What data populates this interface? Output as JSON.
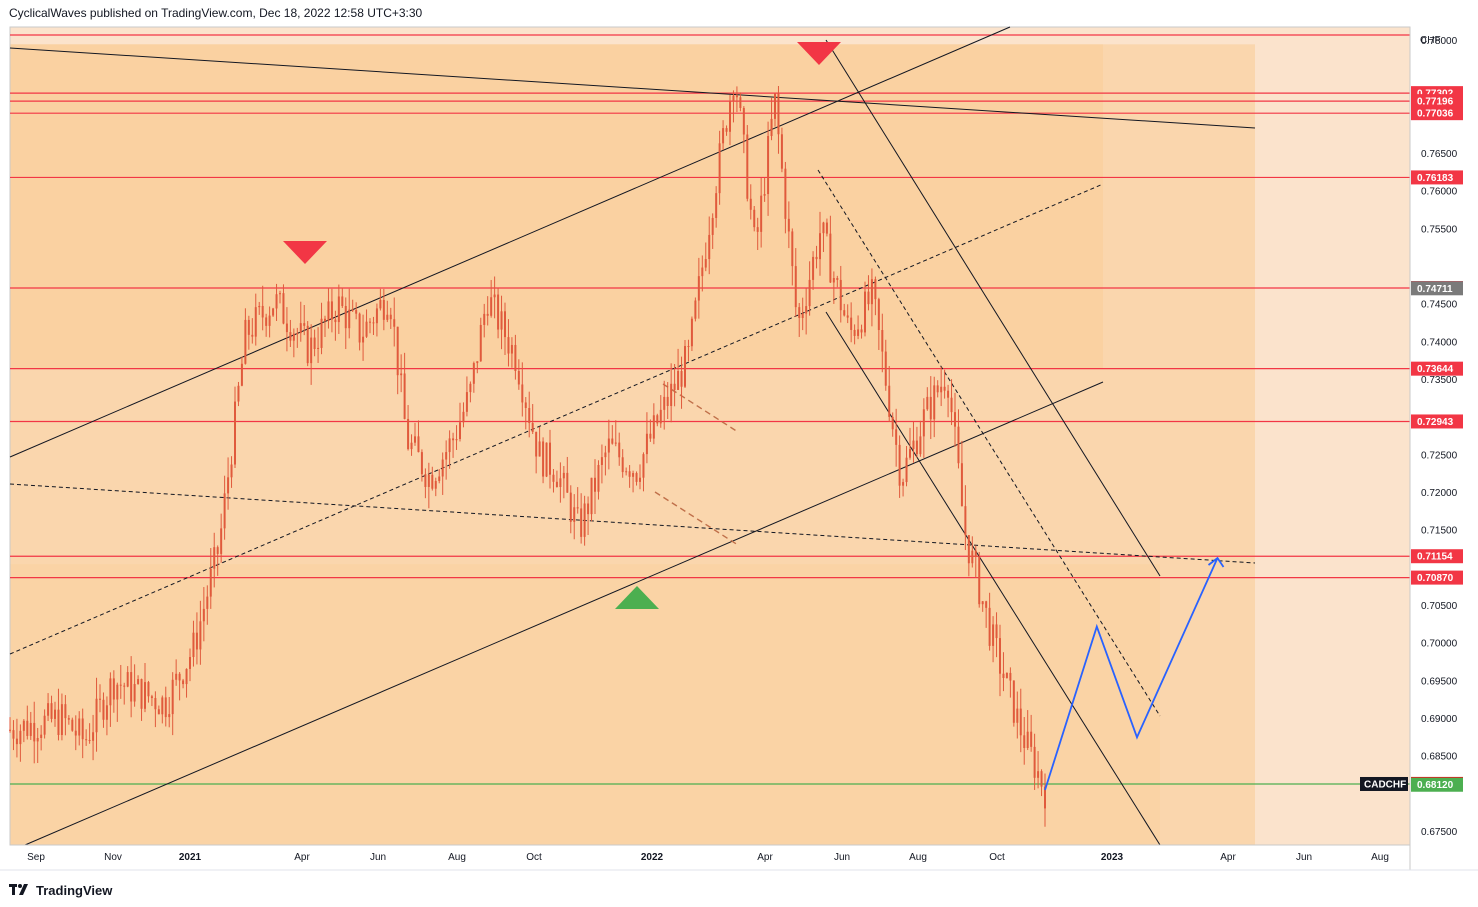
{
  "header": {
    "text": "CyclicalWaves published on TradingView.com, Dec 18, 2022 12:58 UTC+3:30"
  },
  "footer": {
    "brand": "TradingView",
    "logo_icon": "tradingview-logo-icon"
  },
  "colors": {
    "bar": "#e05a3c",
    "level_line": "#f23645",
    "support_line": "#4caf50",
    "projection": "#2962ff",
    "zone_light": "#fbe3cc",
    "zone_mid": "#fad6ad",
    "zone_dark": "#f9cd98",
    "marker_red": "#f23645",
    "marker_green": "#4caf50"
  },
  "chart_data": {
    "type": "candlestick",
    "symbol": "CADCHF",
    "currency": "CHF",
    "x_labels": [
      {
        "label": "Sep",
        "year": false
      },
      {
        "label": "Nov",
        "year": false
      },
      {
        "label": "2021",
        "year": true
      },
      {
        "label": "Apr",
        "year": false
      },
      {
        "label": "Jun",
        "year": false
      },
      {
        "label": "Aug",
        "year": false
      },
      {
        "label": "Oct",
        "year": false
      },
      {
        "label": "2022",
        "year": true
      },
      {
        "label": "Apr",
        "year": false
      },
      {
        "label": "Jun",
        "year": false
      },
      {
        "label": "Aug",
        "year": false
      },
      {
        "label": "Oct",
        "year": false
      },
      {
        "label": "2023",
        "year": true
      },
      {
        "label": "Apr",
        "year": false
      },
      {
        "label": "Jun",
        "year": false
      },
      {
        "label": "Aug",
        "year": false
      }
    ],
    "y_ticks": [
      0.78,
      0.765,
      0.76,
      0.755,
      0.745,
      0.74,
      0.735,
      0.725,
      0.72,
      0.715,
      0.705,
      0.7,
      0.695,
      0.69,
      0.685,
      0.675
    ],
    "y_tick_labels": [
      "0.78000",
      "0.76500",
      "0.76000",
      "0.75500",
      "0.74500",
      "0.74000",
      "0.73500",
      "0.72500",
      "0.72000",
      "0.71500",
      "0.70500",
      "0.70000",
      "0.69500",
      "0.69000",
      "0.68500",
      "0.67500"
    ],
    "ylim": [
      0.6732,
      0.7818
    ],
    "price_levels": [
      {
        "label": "0.77302",
        "value": 0.77302
      },
      {
        "label": "0.77196",
        "value": 0.77196
      },
      {
        "label": "0.77036",
        "value": 0.77036
      },
      {
        "label": "0.76183",
        "value": 0.76183
      },
      {
        "label": "0.74715",
        "value": 0.74715
      },
      {
        "label": "0.73644",
        "value": 0.73644
      },
      {
        "label": "0.72943",
        "value": 0.72943
      },
      {
        "label": "0.71154",
        "value": 0.71154
      },
      {
        "label": "0.70870",
        "value": 0.7087
      }
    ],
    "extra_label": {
      "label": "0.74711",
      "value": 0.74711
    },
    "support": {
      "value": 0.6813
    },
    "symbol_tag": "CADCHF",
    "current_bid": {
      "label": "0.68131",
      "value": 0.68131
    },
    "current_ask": {
      "label": "0.68120",
      "value": 0.6812
    },
    "waypoints": [
      {
        "t": 0.0,
        "p": 0.6885
      },
      {
        "t": 0.045,
        "p": 0.69
      },
      {
        "t": 0.065,
        "p": 0.687
      },
      {
        "t": 0.09,
        "p": 0.695
      },
      {
        "t": 0.135,
        "p": 0.692
      },
      {
        "t": 0.16,
        "p": 0.6995
      },
      {
        "t": 0.182,
        "p": 0.713
      },
      {
        "t": 0.205,
        "p": 0.741
      },
      {
        "t": 0.23,
        "p": 0.7455
      },
      {
        "t": 0.26,
        "p": 0.739
      },
      {
        "t": 0.285,
        "p": 0.745
      },
      {
        "t": 0.305,
        "p": 0.741
      },
      {
        "t": 0.33,
        "p": 0.7465
      },
      {
        "t": 0.345,
        "p": 0.727
      },
      {
        "t": 0.365,
        "p": 0.722
      },
      {
        "t": 0.385,
        "p": 0.727
      },
      {
        "t": 0.4,
        "p": 0.733
      },
      {
        "t": 0.415,
        "p": 0.746
      },
      {
        "t": 0.44,
        "p": 0.738
      },
      {
        "t": 0.46,
        "p": 0.725
      },
      {
        "t": 0.475,
        "p": 0.723
      },
      {
        "t": 0.495,
        "p": 0.715
      },
      {
        "t": 0.52,
        "p": 0.726
      },
      {
        "t": 0.545,
        "p": 0.723
      },
      {
        "t": 0.565,
        "p": 0.73
      },
      {
        "t": 0.59,
        "p": 0.738
      },
      {
        "t": 0.61,
        "p": 0.758
      },
      {
        "t": 0.63,
        "p": 0.776
      },
      {
        "t": 0.648,
        "p": 0.752
      },
      {
        "t": 0.665,
        "p": 0.772
      },
      {
        "t": 0.685,
        "p": 0.742
      },
      {
        "t": 0.705,
        "p": 0.755
      },
      {
        "t": 0.73,
        "p": 0.741
      },
      {
        "t": 0.75,
        "p": 0.746
      },
      {
        "t": 0.775,
        "p": 0.722
      },
      {
        "t": 0.795,
        "p": 0.73
      },
      {
        "t": 0.815,
        "p": 0.736
      },
      {
        "t": 0.83,
        "p": 0.715
      },
      {
        "t": 0.855,
        "p": 0.7
      },
      {
        "t": 0.88,
        "p": 0.688
      },
      {
        "t": 0.9,
        "p": 0.6805
      }
    ],
    "trend_lines": [
      {
        "kind": "channel-upper-rising",
        "dash": false
      },
      {
        "kind": "channel-lower-rising",
        "dash": false
      },
      {
        "kind": "channel-mid-rising",
        "dash": true
      },
      {
        "kind": "long-descending-top",
        "dash": false
      },
      {
        "kind": "long-descending-mid",
        "dash": true
      },
      {
        "kind": "down-channel-upper",
        "dash": false
      },
      {
        "kind": "down-channel-lower",
        "dash": false
      },
      {
        "kind": "down-channel-mid",
        "dash": true
      }
    ],
    "projection_path": [
      {
        "t": 0.9,
        "p": 0.6805
      },
      {
        "t": 0.945,
        "p": 0.7022
      },
      {
        "t": 0.98,
        "p": 0.6875
      },
      {
        "t": 1.05,
        "p": 0.7113
      }
    ],
    "markers": [
      {
        "type": "triangle-down",
        "color": "red",
        "name": "peak-2021"
      },
      {
        "type": "triangle-down",
        "color": "red",
        "name": "peak-2022"
      },
      {
        "type": "triangle-up",
        "color": "green",
        "name": "trough-2021"
      }
    ]
  }
}
